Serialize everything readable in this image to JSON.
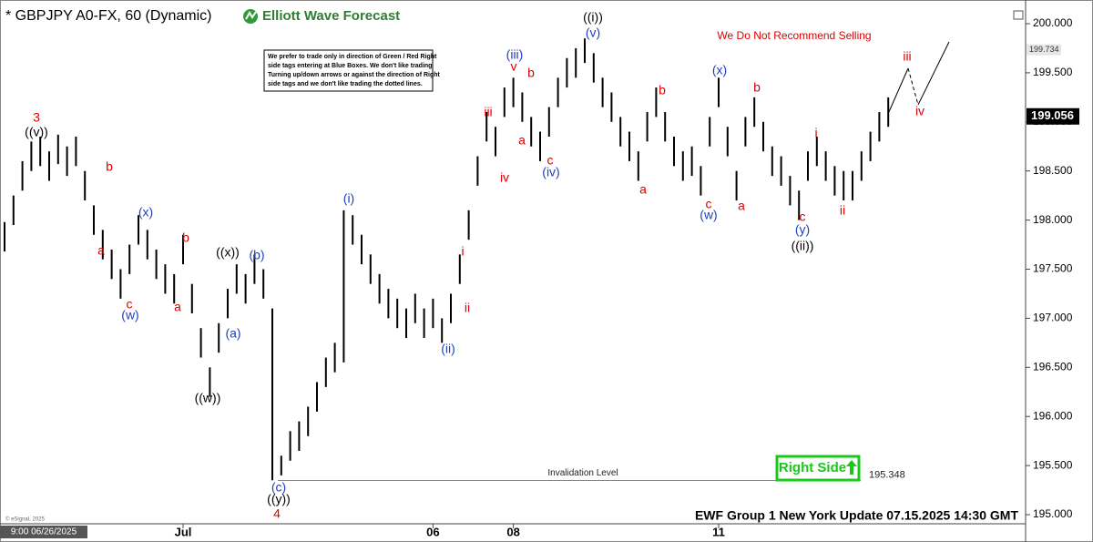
{
  "chart_data": {
    "type": "ohlc",
    "title": "* GBPJPY A0-FX, 60 (Dynamic)",
    "brand": "Elliott Wave Forecast",
    "warning": "We Do Not Recommend Selling",
    "note_lines": [
      "We prefer to trade only in direction of Green / Red Right",
      "side tags entering at Blue Boxes. We don't like trading",
      "Turning up/down arrows or against the direction of Right",
      "side tags and we don't like trading the dotted lines."
    ],
    "footer": "EWF Group 1 New York Update 07.15.2025 14:30 GMT",
    "copyright": "© eSignal, 2025",
    "cursor_label": "9:00 06/26/2025",
    "right_side": "Right Side",
    "invalidation": {
      "label": "Invalidation Level",
      "value": 195.348
    },
    "marker_price": 199.734,
    "last_price": 199.056,
    "bar_color": "#000000",
    "ylim": [
      195,
      200
    ],
    "yticks": [
      {
        "value": 195,
        "label": "195.000"
      },
      {
        "value": 195.5,
        "label": "195.500"
      },
      {
        "value": 196,
        "label": "196.000"
      },
      {
        "value": 196.5,
        "label": "196.500"
      },
      {
        "value": 197,
        "label": "197.000"
      },
      {
        "value": 197.5,
        "label": "197.500"
      },
      {
        "value": 198,
        "label": "198.000"
      },
      {
        "value": 198.5,
        "label": "198.500"
      },
      {
        "value": 199,
        "label": "199.000"
      },
      {
        "value": 199.5,
        "label": "199.500"
      },
      {
        "value": 200,
        "label": "200.000"
      }
    ],
    "categories": [
      null,
      null,
      null,
      null,
      null,
      null,
      null,
      null,
      null,
      null,
      null,
      null,
      null,
      null,
      null,
      null,
      null,
      null,
      null,
      null,
      "Jul",
      null,
      null,
      null,
      null,
      null,
      null,
      null,
      null,
      null,
      null,
      null,
      null,
      null,
      null,
      null,
      null,
      null,
      null,
      null,
      null,
      null,
      null,
      null,
      null,
      null,
      null,
      null,
      "06",
      null,
      null,
      null,
      null,
      null,
      null,
      null,
      null,
      "08",
      null,
      null,
      null,
      null,
      null,
      null,
      null,
      null,
      null,
      null,
      null,
      null,
      null,
      null,
      null,
      null,
      null,
      null,
      null,
      null,
      null,
      null,
      "11",
      null,
      null,
      null,
      null,
      null,
      null,
      null,
      null,
      null,
      null,
      null,
      null,
      null,
      null,
      null,
      null,
      null,
      null,
      null
    ],
    "high": [
      197.98,
      198.25,
      198.6,
      198.8,
      198.85,
      198.7,
      198.87,
      198.75,
      198.85,
      198.5,
      198.15,
      197.9,
      197.7,
      197.5,
      197.75,
      198.05,
      197.9,
      197.7,
      197.55,
      197.45,
      197.85,
      197.35,
      196.9,
      196.5,
      196.95,
      197.3,
      197.55,
      197.45,
      197.65,
      197.5,
      197.1,
      195.6,
      195.85,
      195.95,
      196.1,
      196.35,
      196.6,
      196.75,
      198.1,
      198.05,
      197.85,
      197.65,
      197.45,
      197.3,
      197.2,
      197.1,
      197.25,
      197.1,
      197.2,
      197.0,
      197.25,
      197.65,
      198.1,
      198.65,
      199.1,
      198.95,
      199.35,
      199.45,
      199.3,
      199.05,
      198.9,
      199.15,
      199.45,
      199.65,
      199.75,
      199.85,
      199.7,
      199.45,
      199.3,
      199.05,
      198.9,
      198.7,
      199.1,
      199.35,
      199.1,
      198.85,
      198.7,
      198.75,
      198.55,
      199.05,
      199.45,
      198.95,
      198.5,
      199.05,
      199.25,
      199.0,
      198.75,
      198.65,
      198.45,
      198.3,
      198.7,
      198.85,
      198.7,
      198.55,
      198.5,
      198.5,
      198.7,
      198.9,
      199.1,
      199.25
    ],
    "low": [
      197.68,
      197.95,
      198.3,
      198.5,
      198.55,
      198.4,
      198.57,
      198.45,
      198.55,
      198.2,
      197.85,
      197.6,
      197.4,
      197.2,
      197.45,
      197.75,
      197.6,
      197.4,
      197.25,
      197.15,
      197.55,
      197.05,
      196.6,
      196.2,
      196.65,
      197.0,
      197.25,
      197.15,
      197.35,
      197.2,
      195.35,
      195.4,
      195.55,
      195.65,
      195.8,
      196.05,
      196.3,
      196.45,
      196.55,
      197.75,
      197.55,
      197.35,
      197.15,
      197.0,
      196.9,
      196.8,
      196.95,
      196.8,
      196.9,
      196.75,
      196.95,
      197.35,
      197.8,
      198.35,
      198.8,
      198.65,
      199.05,
      199.15,
      199.0,
      198.75,
      198.6,
      198.85,
      199.15,
      199.35,
      199.45,
      199.6,
      199.4,
      199.15,
      199.0,
      198.75,
      198.6,
      198.4,
      198.8,
      199.05,
      198.8,
      198.55,
      198.4,
      198.45,
      198.25,
      198.75,
      199.15,
      198.65,
      198.2,
      198.75,
      198.95,
      198.7,
      198.45,
      198.35,
      198.15,
      198.0,
      198.4,
      198.55,
      198.4,
      198.25,
      198.2,
      198.2,
      198.4,
      198.6,
      198.8,
      198.95
    ],
    "wave_labels": [
      {
        "text": "3",
        "color": "#e00000"
      },
      {
        "text": "((v))",
        "color": "#000000"
      },
      {
        "text": "b",
        "color": "#e00000"
      },
      {
        "text": "a",
        "color": "#e00000"
      },
      {
        "text": "c",
        "color": "#e00000"
      },
      {
        "text": "(w)",
        "color": "#1f3fbf"
      },
      {
        "text": "(x)",
        "color": "#1f3fbf"
      },
      {
        "text": "b",
        "color": "#e00000"
      },
      {
        "text": "a",
        "color": "#e00000"
      },
      {
        "text": "((w))",
        "color": "#000000"
      },
      {
        "text": "((x))",
        "color": "#000000"
      },
      {
        "text": "(b)",
        "color": "#1f3fbf"
      },
      {
        "text": "(a)",
        "color": "#1f3fbf"
      },
      {
        "text": "(c)",
        "color": "#1f3fbf"
      },
      {
        "text": "((y))",
        "color": "#000000"
      },
      {
        "text": "4",
        "color": "#e00000"
      },
      {
        "text": "(i)",
        "color": "#1f3fbf"
      },
      {
        "text": "(ii)",
        "color": "#1f3fbf"
      },
      {
        "text": "i",
        "color": "#e00000"
      },
      {
        "text": "ii",
        "color": "#e00000"
      },
      {
        "text": "iii",
        "color": "#e00000"
      },
      {
        "text": "iv",
        "color": "#e00000"
      },
      {
        "text": "(iii)",
        "color": "#1f3fbf"
      },
      {
        "text": "v",
        "color": "#e00000"
      },
      {
        "text": "b",
        "color": "#e00000"
      },
      {
        "text": "a",
        "color": "#e00000"
      },
      {
        "text": "c",
        "color": "#e00000"
      },
      {
        "text": "(iv)",
        "color": "#1f3fbf"
      },
      {
        "text": "((i))",
        "color": "#000000"
      },
      {
        "text": "(v)",
        "color": "#1f3fbf"
      },
      {
        "text": "a",
        "color": "#e00000"
      },
      {
        "text": "b",
        "color": "#e00000"
      },
      {
        "text": "(x)",
        "color": "#1f3fbf"
      },
      {
        "text": "b",
        "color": "#e00000"
      },
      {
        "text": "c",
        "color": "#e00000"
      },
      {
        "text": "(w)",
        "color": "#1f3fbf"
      },
      {
        "text": "a",
        "color": "#e00000"
      },
      {
        "text": "i",
        "color": "#e00000"
      },
      {
        "text": "c",
        "color": "#e00000"
      },
      {
        "text": "(y)",
        "color": "#1f3fbf"
      },
      {
        "text": "((ii))",
        "color": "#000000"
      },
      {
        "text": "ii",
        "color": "#e00000"
      },
      {
        "text": "iii",
        "color": "#e00000"
      },
      {
        "text": "iv",
        "color": "#e00000"
      }
    ]
  }
}
